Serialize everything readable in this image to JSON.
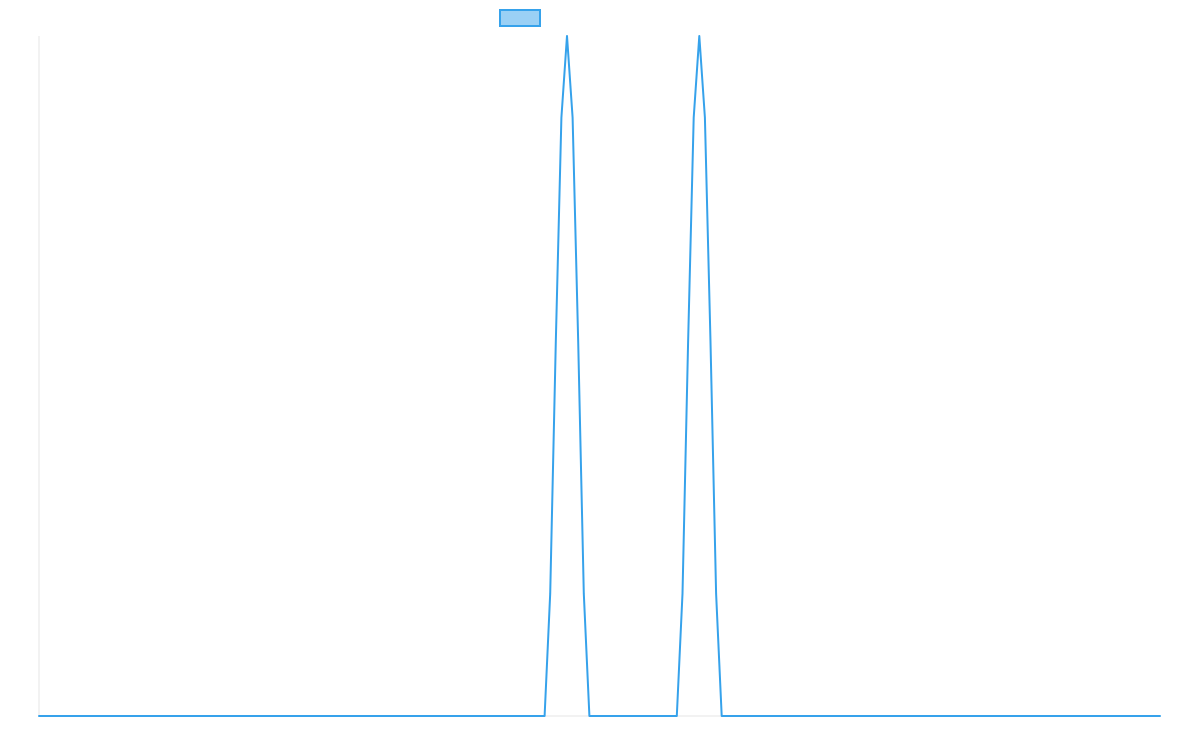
{
  "chart_data": {
    "type": "line",
    "title": "",
    "xlabel": "",
    "ylabel": "",
    "grid": false,
    "legend": {
      "position": "top",
      "entries": [
        {
          "label": "",
          "color": "#36A2EB",
          "fill": "#9AD0F5"
        }
      ]
    },
    "xlim": [
      0,
      1
    ],
    "ylim": [
      0,
      1
    ],
    "series": [
      {
        "color": "#36A2EB",
        "x": [
          0.0,
          0.451,
          0.456,
          0.461,
          0.466,
          0.471,
          0.476,
          0.481,
          0.486,
          0.491,
          0.5,
          0.569,
          0.574,
          0.579,
          0.584,
          0.589,
          0.594,
          0.599,
          0.604,
          0.609,
          0.618,
          1.0
        ],
        "y": [
          0.0,
          0.0,
          0.18,
          0.55,
          0.88,
          1.0,
          0.88,
          0.55,
          0.18,
          0.0,
          0.0,
          0.0,
          0.18,
          0.55,
          0.88,
          1.0,
          0.88,
          0.55,
          0.18,
          0.0,
          0.0,
          0.0
        ]
      }
    ]
  }
}
